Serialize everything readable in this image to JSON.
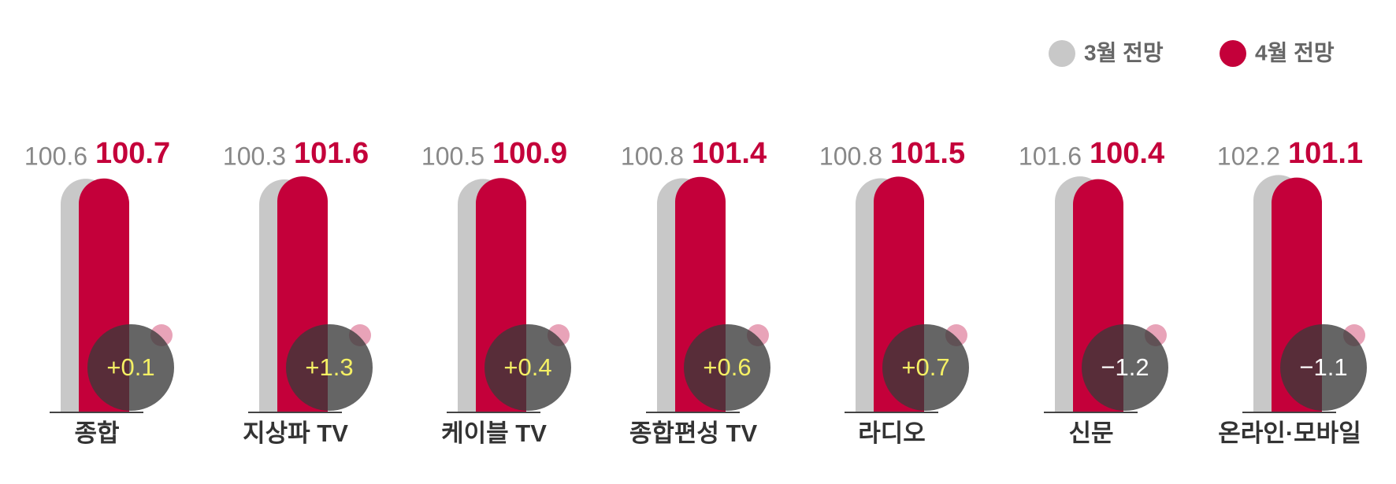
{
  "chart_data": {
    "type": "bar",
    "categories": [
      "종합",
      "지상파 TV",
      "케이블 TV",
      "종합편성 TV",
      "라디오",
      "신문",
      "온라인·모바일"
    ],
    "series": [
      {
        "name": "3월 전망",
        "color": "#c8c8c8",
        "values": [
          100.6,
          100.3,
          100.5,
          100.8,
          100.8,
          101.6,
          102.2
        ]
      },
      {
        "name": "4월 전망",
        "color": "#c4003a",
        "values": [
          100.7,
          101.6,
          100.9,
          101.4,
          101.5,
          100.4,
          101.1
        ]
      }
    ],
    "change": {
      "values": [
        0.1,
        1.3,
        0.4,
        0.6,
        0.7,
        -1.2,
        -1.1
      ],
      "value_labels": [
        "+0.1",
        "+1.3",
        "+0.4",
        "+0.6",
        "+0.7",
        "−1.2",
        "−1.1"
      ],
      "positive_color": "#f5f064",
      "negative_color": "#ffffff"
    },
    "ylim": [
      0,
      103
    ]
  }
}
